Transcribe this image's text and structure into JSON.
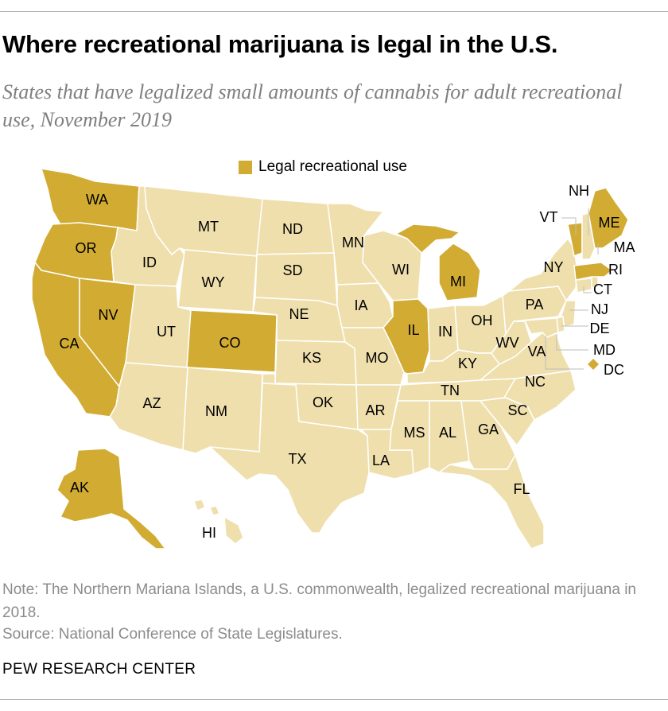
{
  "header": {
    "title": "Where recreational marijuana is legal in the U.S.",
    "subtitle": "States that have legalized small amounts of cannabis for adult recreational use, November 2019"
  },
  "legend": {
    "label": "Legal recreational use"
  },
  "colors": {
    "legal": "#d2ab33",
    "not_legal": "#efdfad",
    "border": "#ffffff"
  },
  "map_data": {
    "states": [
      {
        "abbr": "WA",
        "legal": true
      },
      {
        "abbr": "OR",
        "legal": true
      },
      {
        "abbr": "CA",
        "legal": true
      },
      {
        "abbr": "NV",
        "legal": true
      },
      {
        "abbr": "ID",
        "legal": false
      },
      {
        "abbr": "MT",
        "legal": false
      },
      {
        "abbr": "WY",
        "legal": false
      },
      {
        "abbr": "UT",
        "legal": false
      },
      {
        "abbr": "CO",
        "legal": true
      },
      {
        "abbr": "AZ",
        "legal": false
      },
      {
        "abbr": "NM",
        "legal": false
      },
      {
        "abbr": "ND",
        "legal": false
      },
      {
        "abbr": "SD",
        "legal": false
      },
      {
        "abbr": "NE",
        "legal": false
      },
      {
        "abbr": "KS",
        "legal": false
      },
      {
        "abbr": "OK",
        "legal": false
      },
      {
        "abbr": "TX",
        "legal": false
      },
      {
        "abbr": "MN",
        "legal": false
      },
      {
        "abbr": "IA",
        "legal": false
      },
      {
        "abbr": "MO",
        "legal": false
      },
      {
        "abbr": "AR",
        "legal": false
      },
      {
        "abbr": "LA",
        "legal": false
      },
      {
        "abbr": "WI",
        "legal": false
      },
      {
        "abbr": "IL",
        "legal": true
      },
      {
        "abbr": "MI",
        "legal": true
      },
      {
        "abbr": "IN",
        "legal": false
      },
      {
        "abbr": "OH",
        "legal": false
      },
      {
        "abbr": "KY",
        "legal": false
      },
      {
        "abbr": "TN",
        "legal": false
      },
      {
        "abbr": "MS",
        "legal": false
      },
      {
        "abbr": "AL",
        "legal": false
      },
      {
        "abbr": "GA",
        "legal": false
      },
      {
        "abbr": "FL",
        "legal": false
      },
      {
        "abbr": "SC",
        "legal": false
      },
      {
        "abbr": "NC",
        "legal": false
      },
      {
        "abbr": "VA",
        "legal": false
      },
      {
        "abbr": "WV",
        "legal": false
      },
      {
        "abbr": "PA",
        "legal": false
      },
      {
        "abbr": "NY",
        "legal": false
      },
      {
        "abbr": "NJ",
        "legal": false
      },
      {
        "abbr": "DE",
        "legal": false
      },
      {
        "abbr": "MD",
        "legal": false
      },
      {
        "abbr": "DC",
        "legal": true
      },
      {
        "abbr": "CT",
        "legal": false
      },
      {
        "abbr": "RI",
        "legal": false
      },
      {
        "abbr": "MA",
        "legal": true
      },
      {
        "abbr": "VT",
        "legal": true
      },
      {
        "abbr": "NH",
        "legal": false
      },
      {
        "abbr": "ME",
        "legal": true
      },
      {
        "abbr": "AK",
        "legal": true
      },
      {
        "abbr": "HI",
        "legal": false
      }
    ]
  },
  "footer": {
    "note": "Note: The Northern Mariana Islands, a U.S. commonwealth, legalized recreational marijuana in 2018.",
    "source": "Source: National Conference of State Legislatures.",
    "brand": "PEW RESEARCH CENTER"
  }
}
